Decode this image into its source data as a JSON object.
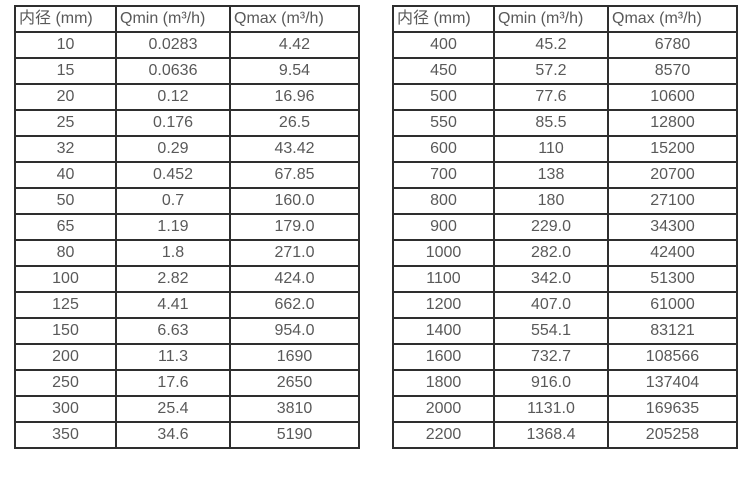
{
  "page": {
    "background": "#ffffff",
    "border_color": "#2e2e2e",
    "text_color": "#595959"
  },
  "column_keys": [
    "diameter",
    "qmin",
    "qmax"
  ],
  "tables": [
    {
      "name": "left-spec-table",
      "headers": [
        "内径 (mm)",
        "Qmin (m³/h)",
        "Qmax (m³/h)"
      ],
      "rows": [
        [
          "10",
          "0.0283",
          "4.42"
        ],
        [
          "15",
          "0.0636",
          "9.54"
        ],
        [
          "20",
          "0.12",
          "16.96"
        ],
        [
          "25",
          "0.176",
          "26.5"
        ],
        [
          "32",
          "0.29",
          "43.42"
        ],
        [
          "40",
          "0.452",
          "67.85"
        ],
        [
          "50",
          "0.7",
          "160.0"
        ],
        [
          "65",
          "1.19",
          "179.0"
        ],
        [
          "80",
          "1.8",
          "271.0"
        ],
        [
          "100",
          "2.82",
          "424.0"
        ],
        [
          "125",
          "4.41",
          "662.0"
        ],
        [
          "150",
          "6.63",
          "954.0"
        ],
        [
          "200",
          "11.3",
          "1690"
        ],
        [
          "250",
          "17.6",
          "2650"
        ],
        [
          "300",
          "25.4",
          "3810"
        ],
        [
          "350",
          "34.6",
          "5190"
        ]
      ]
    },
    {
      "name": "right-spec-table",
      "headers": [
        "内径 (mm)",
        "Qmin (m³/h)",
        "Qmax (m³/h)"
      ],
      "rows": [
        [
          "400",
          "45.2",
          "6780"
        ],
        [
          "450",
          "57.2",
          "8570"
        ],
        [
          "500",
          "77.6",
          "10600"
        ],
        [
          "550",
          "85.5",
          "12800"
        ],
        [
          "600",
          "110",
          "15200"
        ],
        [
          "700",
          "138",
          "20700"
        ],
        [
          "800",
          "180",
          "27100"
        ],
        [
          "900",
          "229.0",
          "34300"
        ],
        [
          "1000",
          "282.0",
          "42400"
        ],
        [
          "1100",
          "342.0",
          "51300"
        ],
        [
          "1200",
          "407.0",
          "61000"
        ],
        [
          "1400",
          "554.1",
          "83121"
        ],
        [
          "1600",
          "732.7",
          "108566"
        ],
        [
          "1800",
          "916.0",
          "137404"
        ],
        [
          "2000",
          "1131.0",
          "169635"
        ],
        [
          "2200",
          "1368.4",
          "205258"
        ]
      ]
    }
  ]
}
